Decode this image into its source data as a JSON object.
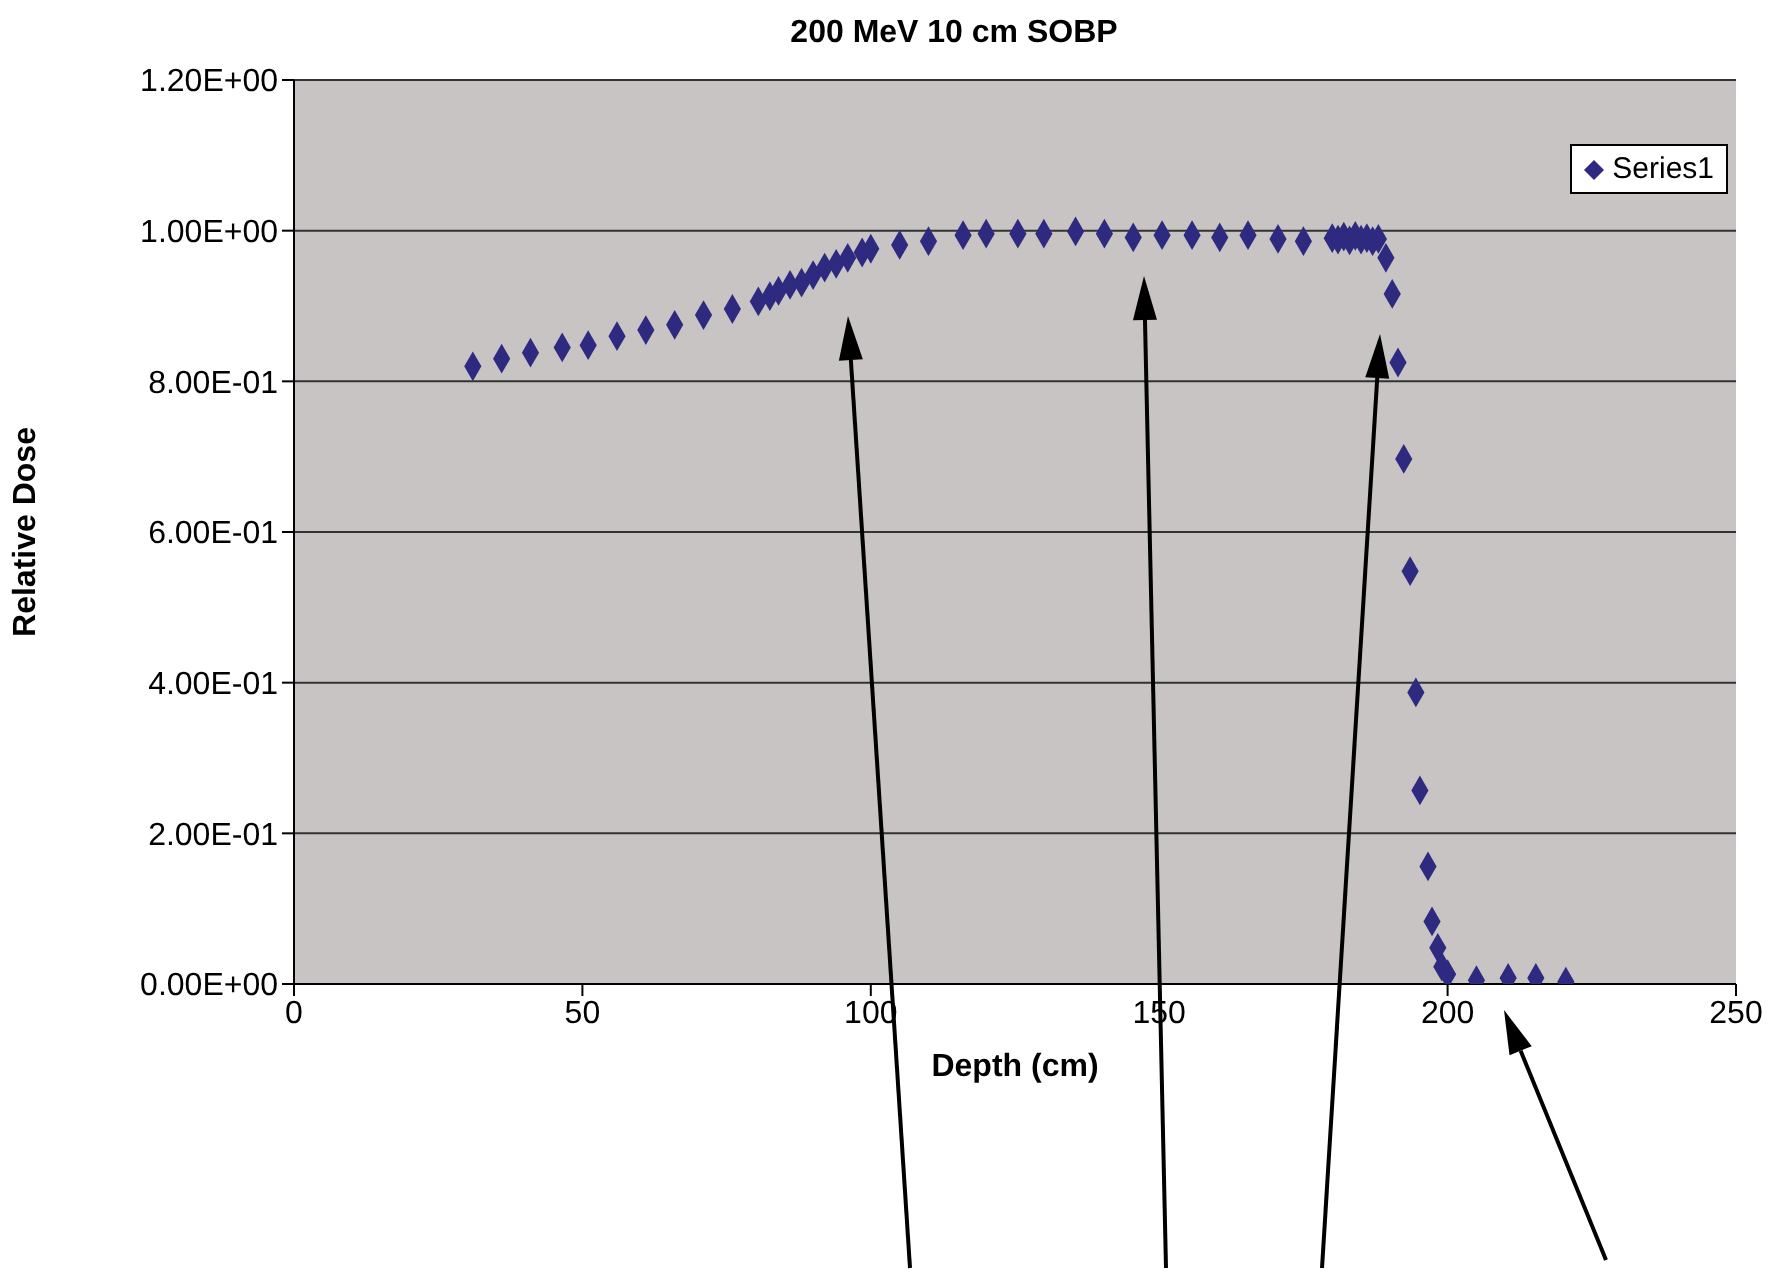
{
  "chart_data": {
    "type": "scatter",
    "title": "200 MeV 10 cm SOBP",
    "xlabel": "Depth (cm)",
    "ylabel": "Relative Dose",
    "x": [
      31,
      36,
      41,
      46.5,
      51,
      56,
      61,
      66,
      71,
      76,
      80.5,
      82.5,
      84,
      86,
      88,
      90,
      92,
      94,
      96,
      98.5,
      100,
      105,
      110,
      116,
      120,
      125.5,
      130,
      135.5,
      140.5,
      145.5,
      150.5,
      155.7,
      160.5,
      165.4,
      170.6,
      175,
      180,
      181,
      182,
      183,
      184,
      185,
      186,
      187,
      188,
      189.3,
      190.4,
      191.4,
      192.4,
      193.5,
      194.5,
      195.2,
      196.6,
      197.3,
      198.3,
      199,
      200,
      205,
      210.5,
      215.3,
      220.5
    ],
    "series": [
      {
        "name": "Series1",
        "color": "#2e2a80",
        "values": [
          0.82,
          0.83,
          0.838,
          0.845,
          0.848,
          0.86,
          0.868,
          0.875,
          0.888,
          0.896,
          0.906,
          0.913,
          0.92,
          0.928,
          0.931,
          0.941,
          0.951,
          0.956,
          0.964,
          0.971,
          0.976,
          0.981,
          0.986,
          0.994,
          0.996,
          0.996,
          0.996,
          0.999,
          0.996,
          0.991,
          0.994,
          0.994,
          0.991,
          0.994,
          0.989,
          0.986,
          0.99,
          0.988,
          0.992,
          0.987,
          0.993,
          0.988,
          0.99,
          0.986,
          0.989,
          0.964,
          0.916,
          0.825,
          0.697,
          0.548,
          0.387,
          0.257,
          0.156,
          0.083,
          0.048,
          0.023,
          0.013,
          0.005,
          0.008,
          0.008,
          0.003
        ]
      }
    ],
    "xlim": [
      0,
      250
    ],
    "xticks": [
      0,
      50,
      100,
      150,
      200,
      250
    ],
    "ylim": [
      0,
      1.2
    ],
    "yticks": [
      {
        "value": 0,
        "label": "0.00E+00"
      },
      {
        "value": 0.2,
        "label": "2.00E-01"
      },
      {
        "value": 0.4,
        "label": "4.00E-01"
      },
      {
        "value": 0.6,
        "label": "6.00E-01"
      },
      {
        "value": 0.8,
        "label": "8.00E-01"
      },
      {
        "value": 1,
        "label": "1.00E+00"
      },
      {
        "value": 1.2,
        "label": "1.20E+00"
      }
    ],
    "grid": "y",
    "legend": "top right",
    "marker": "diamond"
  }
}
